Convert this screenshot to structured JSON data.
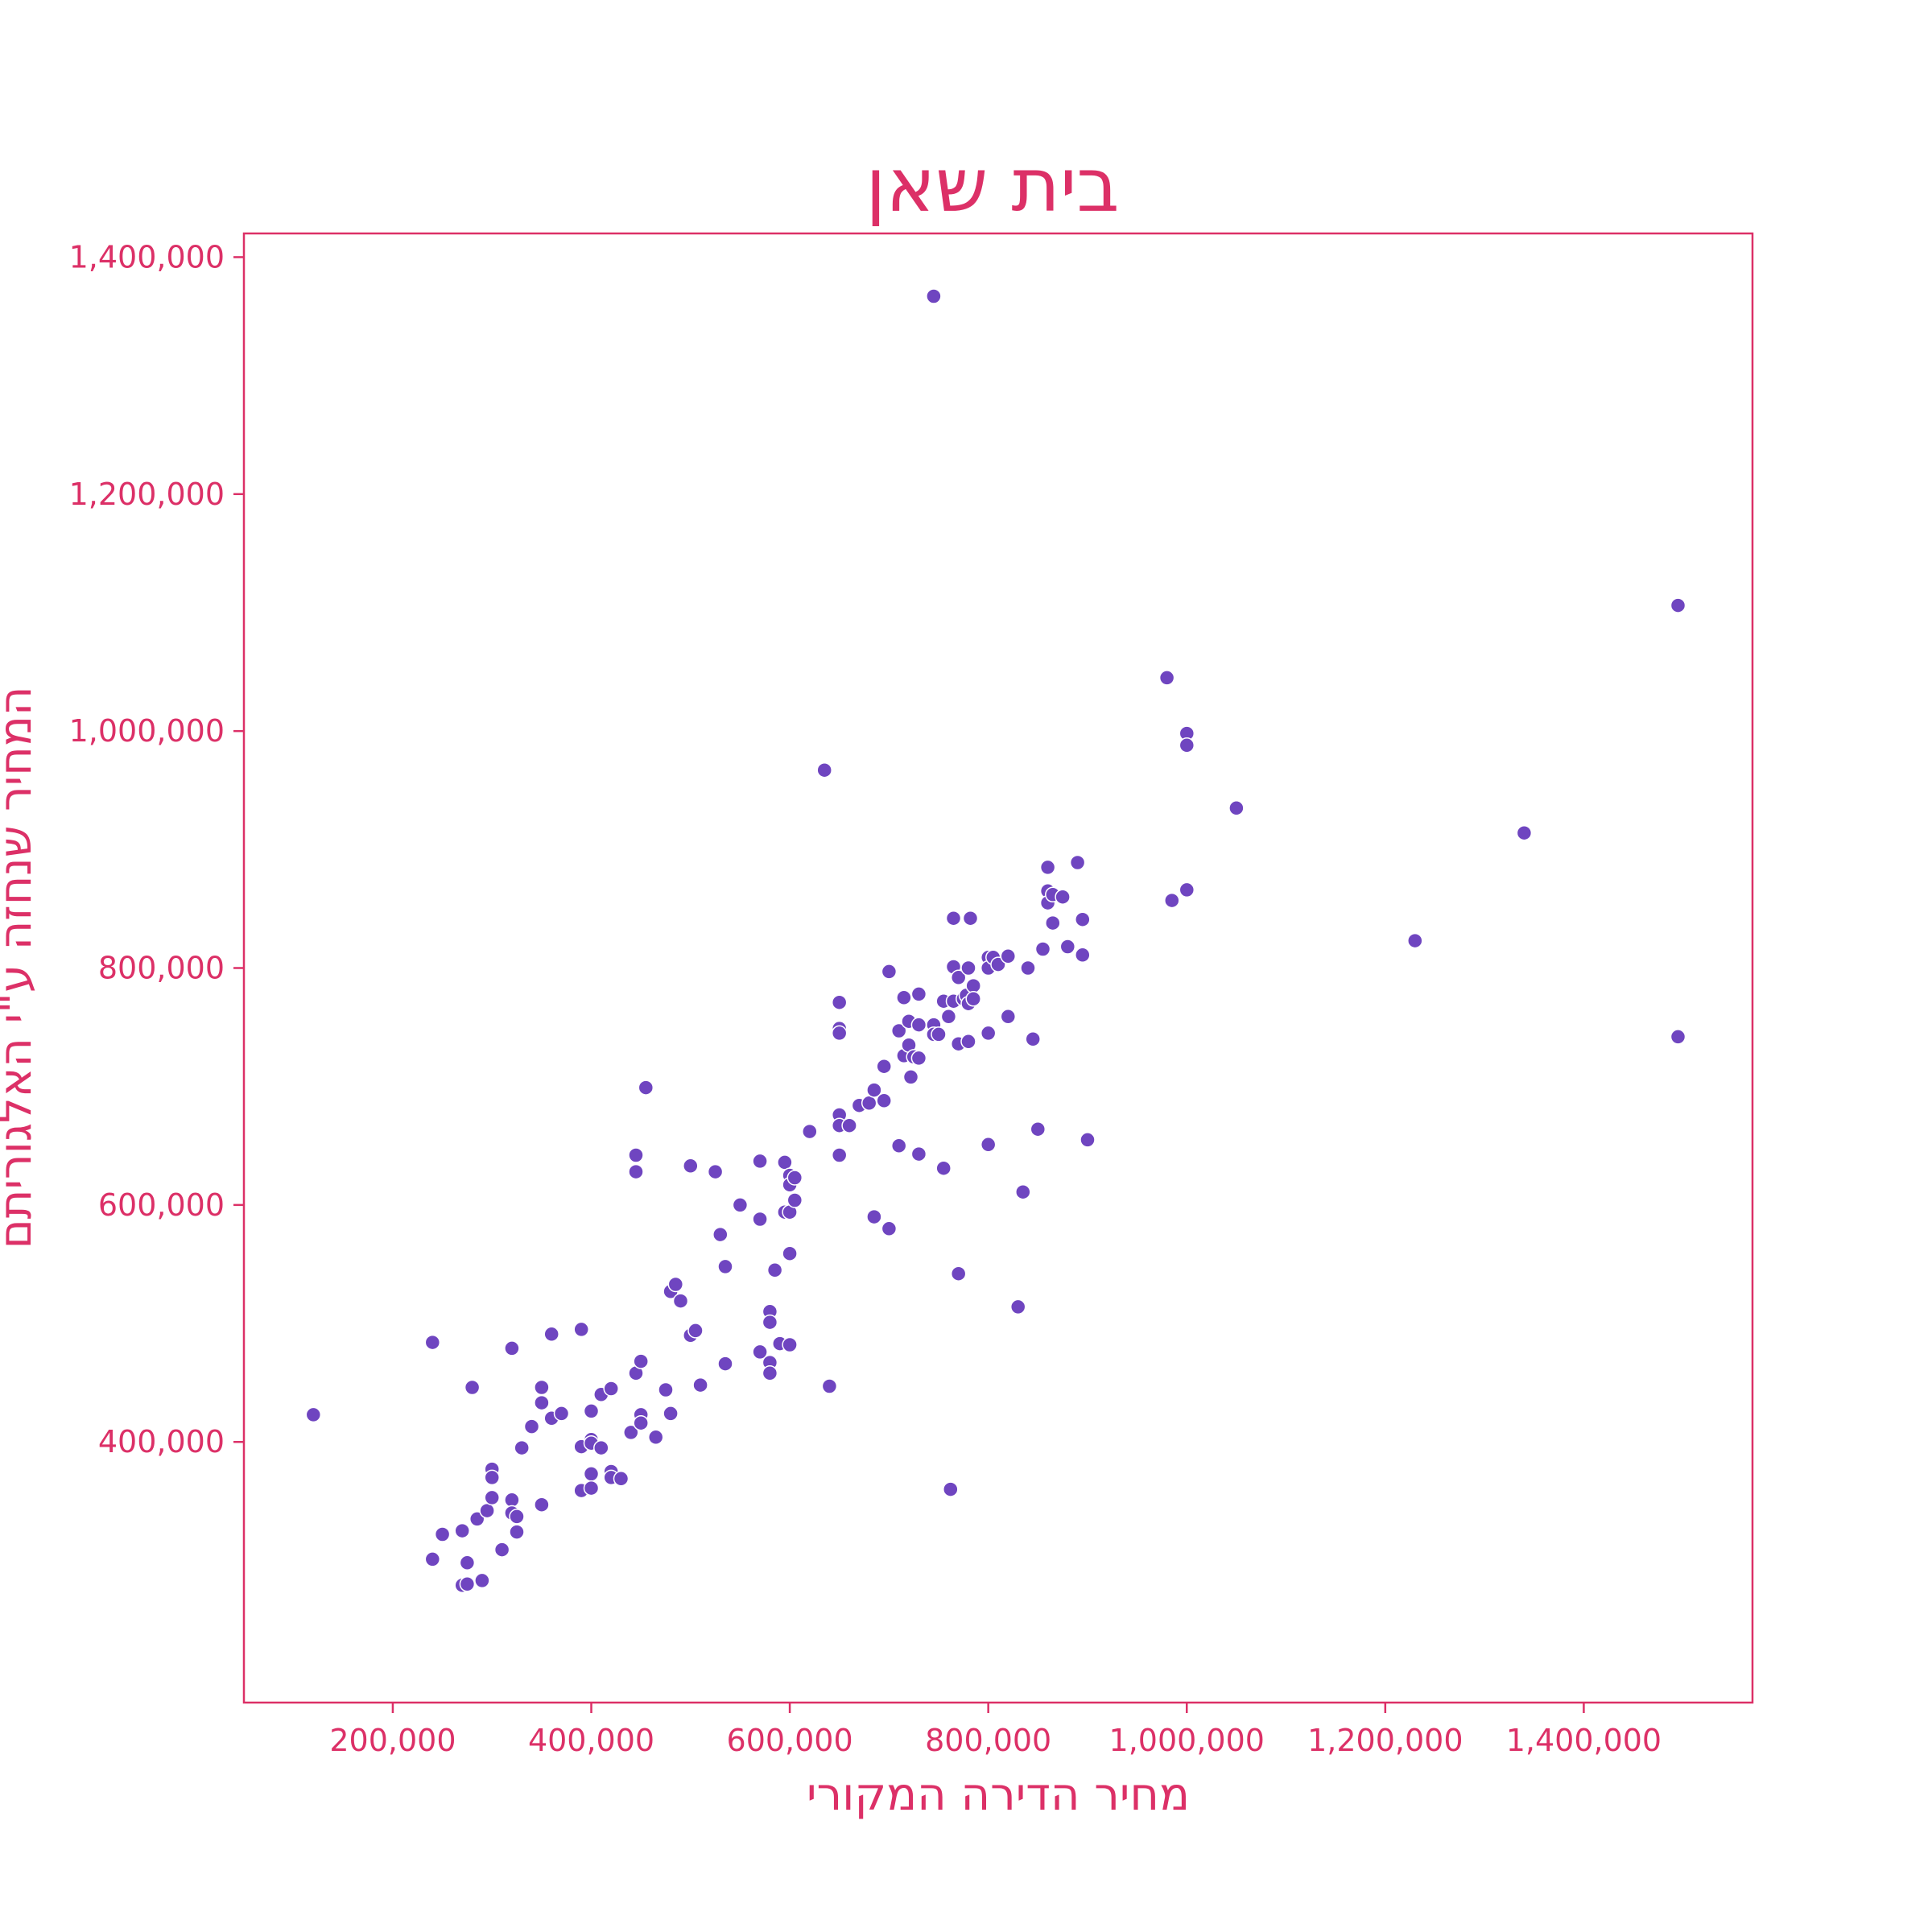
{
  "colors": {
    "accent": "#dc3067",
    "point": "#6f45c0",
    "point_edge": "#ffffff",
    "background": "#ffffff"
  },
  "chart_data": {
    "type": "scatter",
    "title": "בית שאן",
    "xlabel": "מחיר הדירה המקורי",
    "ylabel": "המחיר שנחזה ע\"י האלגוריתם",
    "xlim": [
      50000,
      1570000
    ],
    "ylim": [
      180000,
      1420000
    ],
    "x_ticks": [
      200000,
      400000,
      600000,
      800000,
      1000000,
      1200000,
      1400000
    ],
    "x_tick_labels": [
      "200,000",
      "400,000",
      "600,000",
      "800,000",
      "1,000,000",
      "1,200,000",
      "1,400,000"
    ],
    "y_ticks": [
      400000,
      600000,
      800000,
      1000000,
      1200000,
      1400000
    ],
    "y_tick_labels": [
      "400,000",
      "600,000",
      "800,000",
      "1,000,000",
      "1,200,000",
      "1,400,000"
    ],
    "grid": false,
    "legend": "none",
    "points": [
      [
        120000,
        423000
      ],
      [
        240000,
        484000
      ],
      [
        240000,
        301000
      ],
      [
        250000,
        322000
      ],
      [
        270000,
        325000
      ],
      [
        270000,
        279000
      ],
      [
        275000,
        298000
      ],
      [
        275000,
        280000
      ],
      [
        280000,
        446000
      ],
      [
        285000,
        335000
      ],
      [
        290000,
        283000
      ],
      [
        295000,
        342000
      ],
      [
        300000,
        377000
      ],
      [
        300000,
        370000
      ],
      [
        300000,
        353000
      ],
      [
        310000,
        309000
      ],
      [
        320000,
        479000
      ],
      [
        320000,
        351000
      ],
      [
        320000,
        340000
      ],
      [
        325000,
        337000
      ],
      [
        325000,
        324000
      ],
      [
        330000,
        395000
      ],
      [
        340000,
        413000
      ],
      [
        350000,
        446000
      ],
      [
        350000,
        433000
      ],
      [
        350000,
        347000
      ],
      [
        360000,
        491000
      ],
      [
        360000,
        420000
      ],
      [
        370000,
        424000
      ],
      [
        390000,
        495000
      ],
      [
        390000,
        396000
      ],
      [
        390000,
        359000
      ],
      [
        400000,
        426000
      ],
      [
        400000,
        402000
      ],
      [
        400000,
        399000
      ],
      [
        400000,
        373000
      ],
      [
        400000,
        361000
      ],
      [
        410000,
        440000
      ],
      [
        410000,
        395000
      ],
      [
        420000,
        445000
      ],
      [
        420000,
        375000
      ],
      [
        420000,
        370000
      ],
      [
        430000,
        369000
      ],
      [
        440000,
        408000
      ],
      [
        445000,
        642000
      ],
      [
        445000,
        628000
      ],
      [
        445000,
        458000
      ],
      [
        450000,
        468000
      ],
      [
        450000,
        423000
      ],
      [
        450000,
        416000
      ],
      [
        455000,
        699000
      ],
      [
        465000,
        404000
      ],
      [
        475000,
        444000
      ],
      [
        480000,
        527000
      ],
      [
        480000,
        424000
      ],
      [
        485000,
        533000
      ],
      [
        490000,
        519000
      ],
      [
        500000,
        633000
      ],
      [
        500000,
        490000
      ],
      [
        505000,
        494000
      ],
      [
        510000,
        448000
      ],
      [
        525000,
        628000
      ],
      [
        530000,
        575000
      ],
      [
        535000,
        548000
      ],
      [
        535000,
        466000
      ],
      [
        550000,
        600000
      ],
      [
        570000,
        637000
      ],
      [
        570000,
        588000
      ],
      [
        570000,
        476000
      ],
      [
        580000,
        510000
      ],
      [
        580000,
        501000
      ],
      [
        580000,
        467000
      ],
      [
        580000,
        458000
      ],
      [
        585000,
        545000
      ],
      [
        590000,
        483000
      ],
      [
        595000,
        636000
      ],
      [
        595000,
        594000
      ],
      [
        600000,
        625000
      ],
      [
        600000,
        617000
      ],
      [
        600000,
        594000
      ],
      [
        600000,
        559000
      ],
      [
        600000,
        482000
      ],
      [
        605000,
        623000
      ],
      [
        605000,
        604000
      ],
      [
        620000,
        662000
      ],
      [
        635000,
        967000
      ],
      [
        640000,
        447000
      ],
      [
        650000,
        771000
      ],
      [
        650000,
        749000
      ],
      [
        650000,
        745000
      ],
      [
        650000,
        676000
      ],
      [
        650000,
        667000
      ],
      [
        650000,
        642000
      ],
      [
        660000,
        667000
      ],
      [
        670000,
        684000
      ],
      [
        680000,
        686000
      ],
      [
        685000,
        697000
      ],
      [
        685000,
        590000
      ],
      [
        695000,
        717000
      ],
      [
        695000,
        688000
      ],
      [
        700000,
        797000
      ],
      [
        700000,
        580000
      ],
      [
        710000,
        747000
      ],
      [
        710000,
        650000
      ],
      [
        715000,
        775000
      ],
      [
        715000,
        726000
      ],
      [
        720000,
        755000
      ],
      [
        720000,
        735000
      ],
      [
        722000,
        708000
      ],
      [
        725000,
        725000
      ],
      [
        730000,
        778000
      ],
      [
        730000,
        752000
      ],
      [
        730000,
        724000
      ],
      [
        730000,
        643000
      ],
      [
        745000,
        752000
      ],
      [
        745000,
        744000
      ],
      [
        750000,
        744000
      ],
      [
        755000,
        772000
      ],
      [
        755000,
        631000
      ],
      [
        760000,
        759000
      ],
      [
        762000,
        360000
      ],
      [
        765000,
        842000
      ],
      [
        765000,
        801000
      ],
      [
        765000,
        772000
      ],
      [
        770000,
        792000
      ],
      [
        770000,
        736000
      ],
      [
        770000,
        542000
      ],
      [
        775000,
        774000
      ],
      [
        778000,
        777000
      ],
      [
        780000,
        800000
      ],
      [
        780000,
        770000
      ],
      [
        780000,
        738000
      ],
      [
        782000,
        842000
      ],
      [
        785000,
        785000
      ],
      [
        785000,
        774000
      ],
      [
        745000,
        1367000
      ],
      [
        800000,
        809000
      ],
      [
        800000,
        800000
      ],
      [
        800000,
        745000
      ],
      [
        800000,
        651000
      ],
      [
        805000,
        809000
      ],
      [
        810000,
        803000
      ],
      [
        820000,
        810000
      ],
      [
        820000,
        759000
      ],
      [
        830000,
        514000
      ],
      [
        835000,
        611000
      ],
      [
        840000,
        800000
      ],
      [
        845000,
        740000
      ],
      [
        850000,
        664000
      ],
      [
        855000,
        816000
      ],
      [
        860000,
        885000
      ],
      [
        860000,
        865000
      ],
      [
        860000,
        855000
      ],
      [
        865000,
        862000
      ],
      [
        865000,
        838000
      ],
      [
        875000,
        860000
      ],
      [
        880000,
        818000
      ],
      [
        890000,
        889000
      ],
      [
        895000,
        841000
      ],
      [
        895000,
        811000
      ],
      [
        900000,
        655000
      ],
      [
        980000,
        1045000
      ],
      [
        985000,
        857000
      ],
      [
        1000000,
        998000
      ],
      [
        1000000,
        988000
      ],
      [
        1000000,
        866000
      ],
      [
        1050000,
        935000
      ],
      [
        1230000,
        823000
      ],
      [
        1340000,
        914000
      ],
      [
        1495000,
        1106000
      ],
      [
        1495000,
        742000
      ]
    ]
  }
}
